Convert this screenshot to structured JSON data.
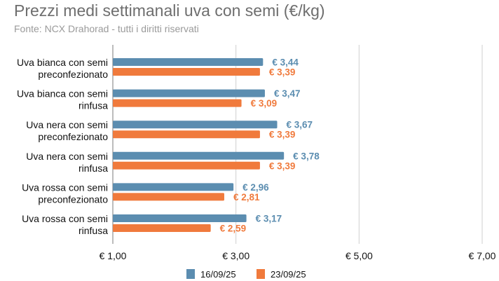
{
  "title": "Prezzi medi settimanali uva con semi (€/kg)",
  "subtitle": "Fonte: NCX Drahorad - tutti i diritti riservati",
  "chart_data": {
    "type": "bar",
    "orientation": "horizontal",
    "categories": [
      [
        "Uva bianca con semi",
        "preconfezionato"
      ],
      [
        "Uva bianca con semi",
        "rinfusa"
      ],
      [
        "Uva nera con semi",
        "preconfezionato"
      ],
      [
        "Uva nera con semi",
        "rinfusa"
      ],
      [
        "Uva rossa con semi",
        "preconfezionato"
      ],
      [
        "Uva rossa con semi",
        "rinfusa"
      ]
    ],
    "series": [
      {
        "name": "16/09/25",
        "color": "#5b8db0",
        "values": [
          3.44,
          3.47,
          3.67,
          3.78,
          2.96,
          3.17
        ],
        "labels": [
          "€ 3,44",
          "€ 3,47",
          "€ 3,67",
          "€ 3,78",
          "€ 2,96",
          "€ 3,17"
        ]
      },
      {
        "name": "23/09/25",
        "color": "#f07a3c",
        "values": [
          3.39,
          3.09,
          3.39,
          3.39,
          2.81,
          2.59
        ],
        "labels": [
          "€ 3,39",
          "€ 3,09",
          "€ 3,39",
          "€ 3,39",
          "€ 2,81",
          "€ 2,59"
        ]
      }
    ],
    "xlim": [
      1,
      7
    ],
    "xticks": [
      1,
      3,
      5,
      7
    ],
    "xtick_labels": [
      "€ 1,00",
      "€ 3,00",
      "€ 5,00",
      "€ 7,00"
    ],
    "grid": "vertical",
    "legend_position": "bottom"
  }
}
